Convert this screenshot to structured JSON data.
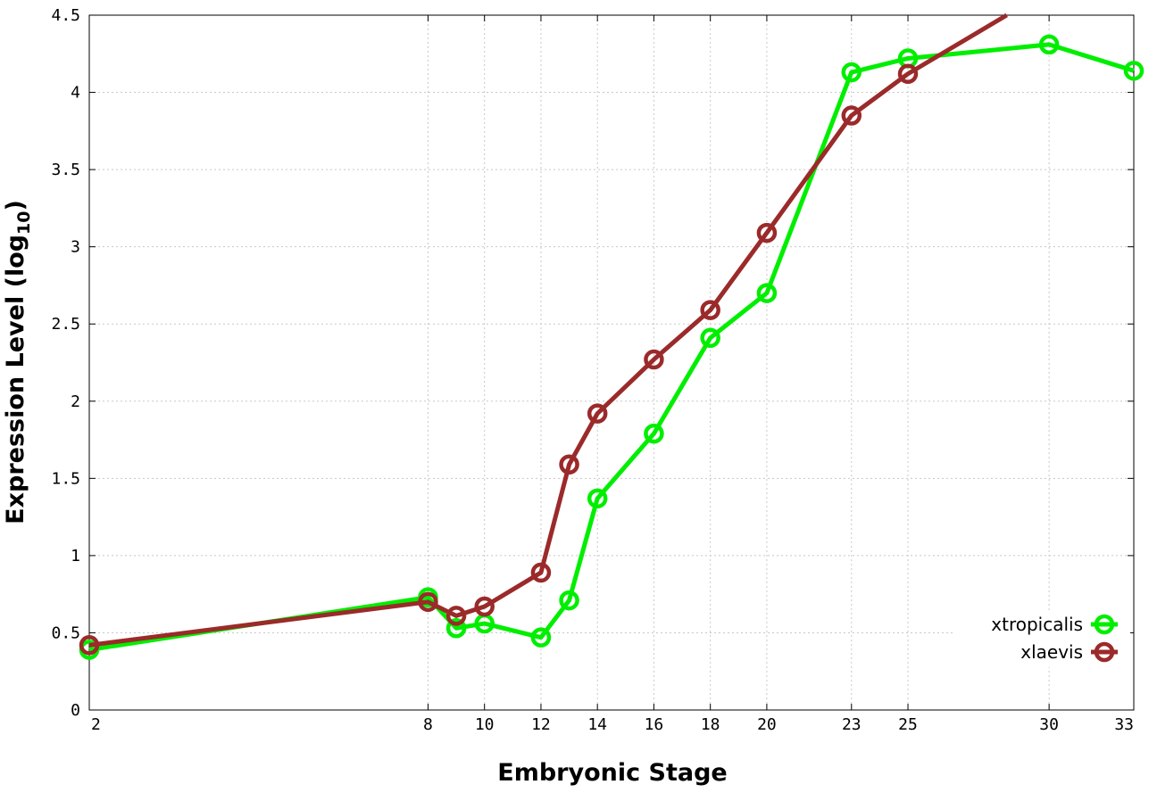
{
  "chart_data": {
    "type": "line",
    "xlabel": "Embryonic Stage",
    "ylabel_main": "Expression Level (log",
    "ylabel_sub": "10",
    "ylabel_close": ")",
    "xlim": [
      2,
      33
    ],
    "ylim": [
      0,
      4.5
    ],
    "x_ticks": [
      2,
      8,
      10,
      12,
      14,
      16,
      18,
      20,
      23,
      25,
      30,
      33
    ],
    "x_tick_positions": [
      2,
      8,
      9,
      10,
      11,
      12,
      13,
      14,
      15.5,
      16.5,
      19,
      20.5
    ],
    "y_ticks": [
      "0",
      "0.5",
      "1",
      "1.5",
      "2",
      "2.5",
      "3",
      "3.5",
      "4",
      "4.5"
    ],
    "y_tick_values": [
      0,
      0.5,
      1,
      1.5,
      2,
      2.5,
      3,
      3.5,
      4,
      4.5
    ],
    "grid": true,
    "legend_placement": "bottom-right",
    "series": [
      {
        "name": "xtropicalis",
        "color": "#00ee00",
        "x": [
          2,
          8,
          9,
          10,
          12,
          13,
          14,
          16,
          18,
          20,
          23,
          25,
          30,
          33
        ],
        "values": [
          0.39,
          0.73,
          0.53,
          0.56,
          0.47,
          0.71,
          1.37,
          1.79,
          2.41,
          2.7,
          4.13,
          4.22,
          4.31,
          4.14
        ]
      },
      {
        "name": "xlaevis",
        "color": "#9b2a2a",
        "x": [
          2,
          8,
          9,
          10,
          12,
          13,
          14,
          16,
          18,
          20,
          23,
          25,
          28.5
        ],
        "values": [
          0.42,
          0.7,
          0.61,
          0.67,
          0.89,
          1.59,
          1.92,
          2.27,
          2.59,
          3.09,
          3.85,
          4.12,
          4.5
        ],
        "last_point_marker": false
      }
    ]
  }
}
